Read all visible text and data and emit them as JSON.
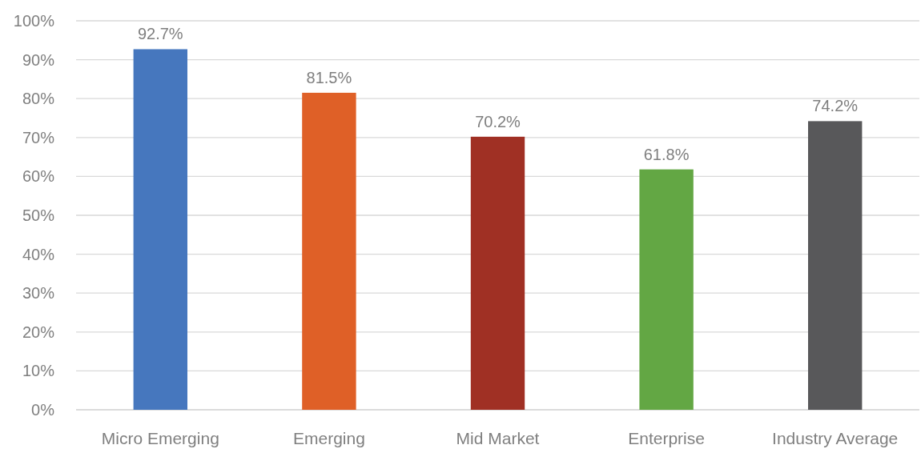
{
  "chart_data": {
    "type": "bar",
    "categories": [
      "Micro Emerging",
      "Emerging",
      "Mid Market",
      "Enterprise",
      "Industry Average"
    ],
    "values": [
      92.7,
      81.5,
      70.2,
      61.8,
      74.2
    ],
    "colors": [
      "#4677be",
      "#df6027",
      "#a03024",
      "#63a744",
      "#58585a"
    ],
    "value_labels": [
      "92.7%",
      "81.5%",
      "70.2%",
      "61.8%",
      "74.2%"
    ],
    "ylim": [
      0,
      100
    ],
    "yticks": [
      {
        "value": 0,
        "label": "0%"
      },
      {
        "value": 10,
        "label": "10%"
      },
      {
        "value": 20,
        "label": "20%"
      },
      {
        "value": 30,
        "label": "30%"
      },
      {
        "value": 40,
        "label": "40%"
      },
      {
        "value": 50,
        "label": "50%"
      },
      {
        "value": 60,
        "label": "60%"
      },
      {
        "value": 70,
        "label": "70%"
      },
      {
        "value": 80,
        "label": "80%"
      },
      {
        "value": 90,
        "label": "90%"
      },
      {
        "value": 100,
        "label": "100%"
      }
    ],
    "grid": "y"
  }
}
